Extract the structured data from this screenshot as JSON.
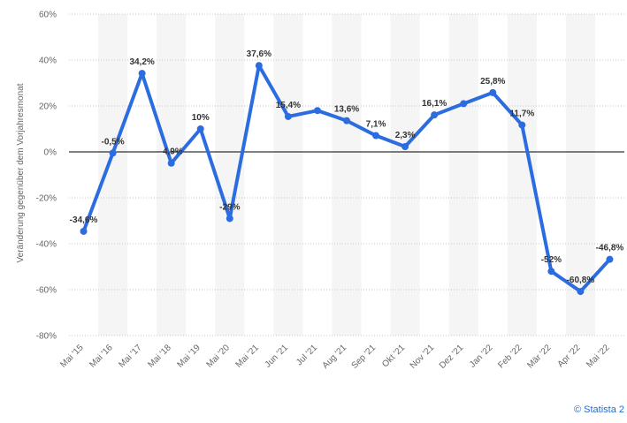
{
  "chart_data": {
    "type": "line",
    "ylabel": "Veränderung gegenüber dem Vorjahresmonat",
    "categories": [
      "Mai '15",
      "Mai '16",
      "Mai '17",
      "Mai '18",
      "Mai '19",
      "Mai '20",
      "Mai '21",
      "Jun '21",
      "Jul '21",
      "Aug '21",
      "Sep '21",
      "Okt '21",
      "Nov '21",
      "Dez '21",
      "Jan '22",
      "Feb '22",
      "Mär '22",
      "Apr '22",
      "Mai '22"
    ],
    "values": [
      -34.6,
      -0.5,
      34.2,
      -4.9,
      10,
      -29,
      37.6,
      15.4,
      18,
      13.6,
      7.1,
      2.3,
      16.1,
      21,
      25.8,
      11.7,
      -52,
      -60.8,
      -46.8
    ],
    "value_labels": [
      "-34,6%",
      "-0,5%",
      "34,2%",
      "-4,9%",
      "10%",
      "-29%",
      "37,6%",
      "15,4%",
      "",
      "13,6%",
      "7,1%",
      "2,3%",
      "16,1%",
      "",
      "25,8%",
      "11,7%",
      "-52%",
      "-60,8%",
      "-46,8%"
    ],
    "ylim": [
      -80,
      60
    ],
    "yticks": [
      "60%",
      "40%",
      "20%",
      "0%",
      "-20%",
      "-40%",
      "-60%",
      "-80%"
    ],
    "ytick_values": [
      60,
      40,
      20,
      0,
      -20,
      -40,
      -60,
      -80
    ],
    "grid": true,
    "color": "#2b6de0"
  },
  "credit": "© Statista 2"
}
